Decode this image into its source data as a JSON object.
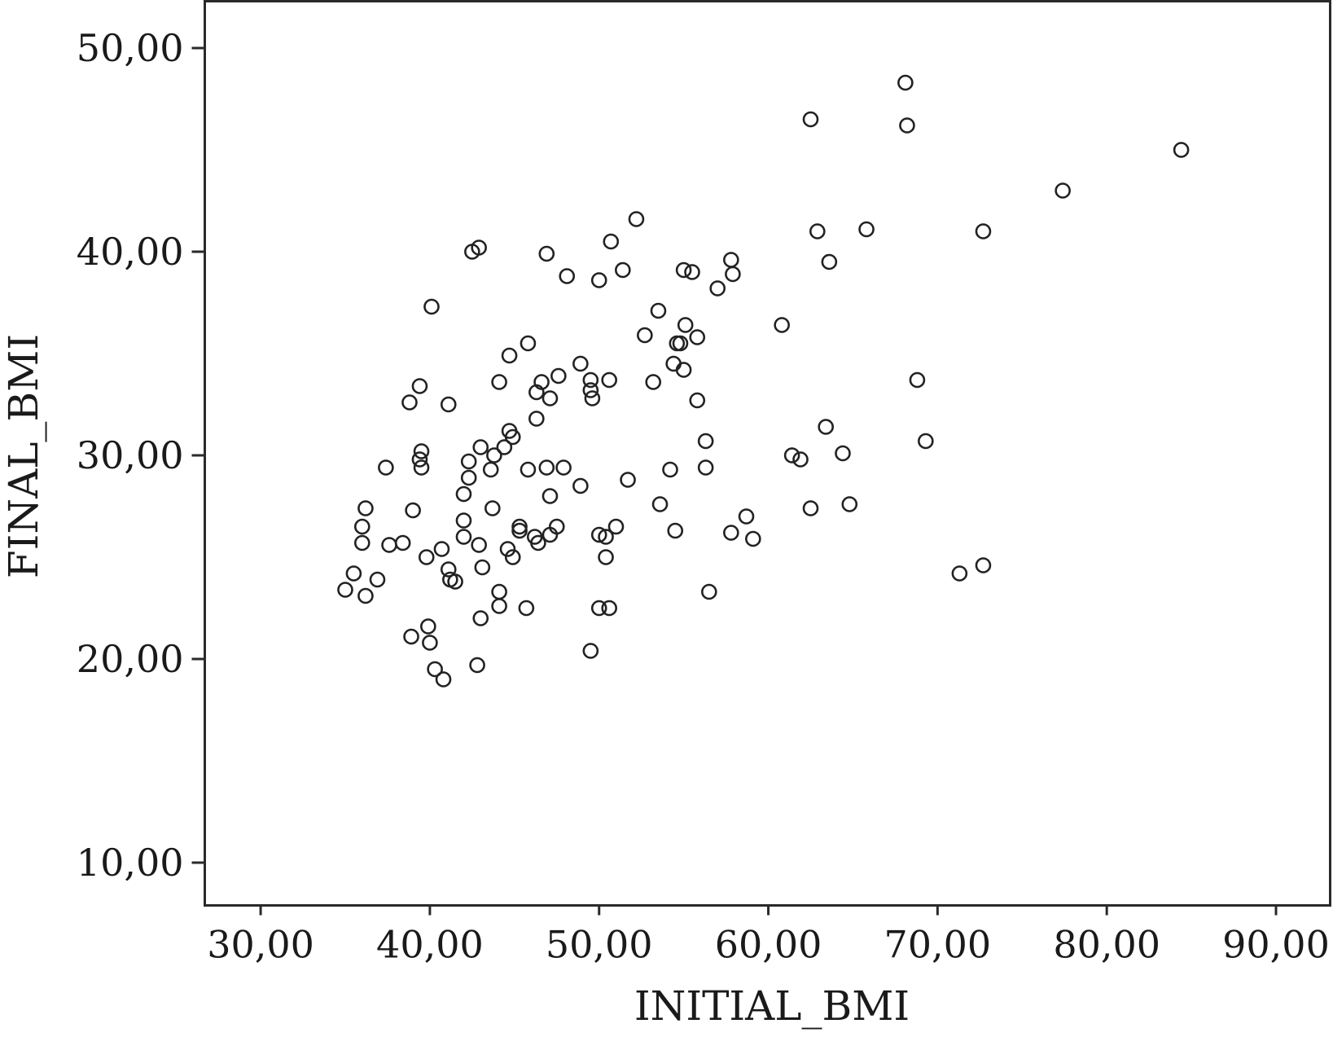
{
  "chart_data": {
    "type": "scatter",
    "xlabel": "INITIAL_BMI",
    "ylabel": "FINAL_BMI",
    "xlim": [
      26.7,
      93.2
    ],
    "ylim": [
      7.9,
      52.3
    ],
    "xticks": [
      30,
      40,
      50,
      60,
      70,
      80,
      90
    ],
    "yticks": [
      10,
      20,
      30,
      40,
      50
    ],
    "xtick_labels": [
      "30,00",
      "40,00",
      "50,00",
      "60,00",
      "70,00",
      "80,00",
      "90,00"
    ],
    "ytick_labels": [
      "10,00",
      "20,00",
      "30,00",
      "40,00",
      "50,00"
    ],
    "grid": false,
    "marker": "hollow-circle",
    "marker_color": "#222222",
    "points": [
      [
        35.0,
        23.4
      ],
      [
        35.5,
        24.2
      ],
      [
        36.0,
        25.7
      ],
      [
        36.0,
        26.5
      ],
      [
        36.2,
        27.4
      ],
      [
        36.2,
        23.1
      ],
      [
        36.9,
        23.9
      ],
      [
        37.4,
        29.4
      ],
      [
        37.6,
        25.6
      ],
      [
        38.4,
        25.7
      ],
      [
        38.8,
        32.6
      ],
      [
        39.0,
        27.3
      ],
      [
        38.9,
        21.1
      ],
      [
        39.4,
        29.8
      ],
      [
        39.4,
        33.4
      ],
      [
        39.5,
        30.2
      ],
      [
        39.5,
        29.4
      ],
      [
        39.8,
        25.0
      ],
      [
        39.9,
        21.6
      ],
      [
        40.0,
        20.8
      ],
      [
        40.1,
        37.3
      ],
      [
        40.3,
        19.5
      ],
      [
        40.7,
        25.4
      ],
      [
        40.8,
        19.0
      ],
      [
        41.1,
        32.5
      ],
      [
        41.1,
        24.4
      ],
      [
        41.2,
        23.9
      ],
      [
        41.5,
        23.8
      ],
      [
        42.0,
        28.1
      ],
      [
        42.0,
        26.8
      ],
      [
        42.0,
        26.0
      ],
      [
        42.3,
        29.7
      ],
      [
        42.3,
        28.9
      ],
      [
        42.5,
        40.0
      ],
      [
        42.8,
        19.7
      ],
      [
        42.9,
        40.2
      ],
      [
        43.0,
        30.4
      ],
      [
        42.9,
        25.6
      ],
      [
        43.0,
        22.0
      ],
      [
        43.1,
        24.5
      ],
      [
        43.6,
        29.3
      ],
      [
        43.7,
        27.4
      ],
      [
        43.8,
        30.0
      ],
      [
        44.1,
        33.6
      ],
      [
        44.1,
        23.3
      ],
      [
        44.1,
        22.6
      ],
      [
        44.4,
        30.4
      ],
      [
        44.7,
        34.9
      ],
      [
        44.7,
        31.2
      ],
      [
        44.6,
        25.4
      ],
      [
        44.9,
        30.9
      ],
      [
        44.9,
        25.0
      ],
      [
        45.3,
        26.5
      ],
      [
        45.3,
        26.3
      ],
      [
        45.8,
        35.5
      ],
      [
        45.8,
        29.3
      ],
      [
        45.7,
        22.5
      ],
      [
        46.2,
        26.0
      ],
      [
        46.3,
        31.8
      ],
      [
        46.3,
        33.1
      ],
      [
        46.6,
        33.6
      ],
      [
        46.4,
        25.7
      ],
      [
        46.9,
        39.9
      ],
      [
        46.9,
        29.4
      ],
      [
        47.1,
        32.8
      ],
      [
        47.1,
        28.0
      ],
      [
        47.1,
        26.1
      ],
      [
        47.5,
        26.5
      ],
      [
        47.6,
        33.9
      ],
      [
        47.9,
        29.4
      ],
      [
        48.1,
        38.8
      ],
      [
        48.9,
        34.5
      ],
      [
        48.9,
        28.5
      ],
      [
        49.5,
        33.7
      ],
      [
        49.5,
        33.2
      ],
      [
        49.6,
        32.8
      ],
      [
        49.5,
        20.4
      ],
      [
        50.0,
        38.6
      ],
      [
        50.0,
        26.1
      ],
      [
        50.0,
        22.5
      ],
      [
        50.4,
        26.0
      ],
      [
        50.4,
        25.0
      ],
      [
        50.6,
        33.7
      ],
      [
        50.6,
        22.5
      ],
      [
        50.7,
        40.5
      ],
      [
        51.0,
        26.5
      ],
      [
        51.4,
        39.1
      ],
      [
        51.7,
        28.8
      ],
      [
        52.2,
        41.6
      ],
      [
        52.7,
        35.9
      ],
      [
        53.2,
        33.6
      ],
      [
        53.5,
        37.1
      ],
      [
        53.6,
        27.6
      ],
      [
        54.2,
        29.3
      ],
      [
        54.4,
        34.5
      ],
      [
        54.6,
        35.5
      ],
      [
        54.5,
        26.3
      ],
      [
        54.8,
        35.5
      ],
      [
        55.0,
        39.1
      ],
      [
        55.0,
        34.2
      ],
      [
        55.1,
        36.4
      ],
      [
        55.5,
        39.0
      ],
      [
        55.8,
        35.8
      ],
      [
        55.8,
        32.7
      ],
      [
        56.3,
        30.7
      ],
      [
        56.3,
        29.4
      ],
      [
        56.5,
        23.3
      ],
      [
        57.0,
        38.2
      ],
      [
        57.8,
        39.6
      ],
      [
        57.9,
        38.9
      ],
      [
        57.8,
        26.2
      ],
      [
        58.7,
        27.0
      ],
      [
        59.1,
        25.9
      ],
      [
        60.8,
        36.4
      ],
      [
        61.4,
        30.0
      ],
      [
        61.9,
        29.8
      ],
      [
        62.5,
        46.5
      ],
      [
        62.5,
        27.4
      ],
      [
        62.9,
        41.0
      ],
      [
        63.4,
        31.4
      ],
      [
        63.6,
        39.5
      ],
      [
        64.4,
        30.1
      ],
      [
        64.8,
        27.6
      ],
      [
        65.8,
        41.1
      ],
      [
        68.1,
        48.3
      ],
      [
        68.2,
        46.2
      ],
      [
        68.8,
        33.7
      ],
      [
        69.3,
        30.7
      ],
      [
        71.3,
        24.2
      ],
      [
        72.7,
        41.0
      ],
      [
        72.7,
        24.6
      ],
      [
        77.4,
        43.0
      ],
      [
        84.4,
        45.0
      ]
    ]
  }
}
